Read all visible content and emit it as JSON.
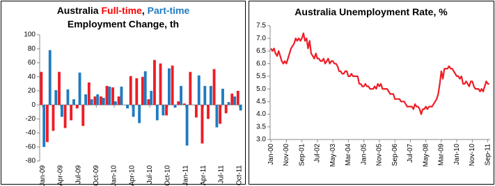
{
  "chart_data": [
    {
      "type": "bar",
      "title_parts": [
        {
          "text": "Australia ",
          "color": "#000000"
        },
        {
          "text": "Full-time",
          "color": "#ff0000"
        },
        {
          "text": ", ",
          "color": "#000000"
        },
        {
          "text": "Part-time",
          "color": "#1f7bc1"
        }
      ],
      "subtitle": "Employment Change, th",
      "categories": [
        "Jan-09",
        null,
        null,
        "Apr-09",
        null,
        null,
        "Jul-09",
        null,
        null,
        "Oct-09",
        null,
        null,
        "Jan-10",
        null,
        null,
        "Apr-10",
        null,
        null,
        "Jul-10",
        null,
        null,
        "Oct-10",
        null,
        null,
        "Jan-11",
        null,
        null,
        "Apr-11",
        null,
        null,
        "Jul-11",
        null,
        null,
        "Oct-11"
      ],
      "series": [
        {
          "name": "Full-time",
          "color": "#ee1c25",
          "values": [
            47,
            -53,
            -37,
            47,
            -33,
            -22,
            -5,
            -30,
            32,
            12,
            12,
            27,
            25,
            12,
            0,
            41,
            38,
            40,
            8,
            64,
            59,
            -15,
            56,
            5,
            2,
            47,
            -18,
            -55,
            -20,
            51,
            -27,
            -12,
            16,
            20
          ]
        },
        {
          "name": "Part-time",
          "color": "#1f7bc1",
          "values": [
            -60,
            78,
            21,
            -17,
            22,
            8,
            46,
            15,
            8,
            15,
            10,
            26,
            5,
            26,
            -5,
            -17,
            -26,
            48,
            20,
            -22,
            -15,
            52,
            -4,
            27,
            -58,
            0,
            42,
            27,
            27,
            -32,
            23,
            4,
            12,
            -8
          ]
        }
      ],
      "ylim": [
        -80,
        100
      ],
      "yticks": [
        -80,
        -60,
        -40,
        -20,
        0,
        20,
        40,
        60,
        80,
        100
      ]
    },
    {
      "type": "line",
      "title_parts": [
        {
          "text": "Australia Unemployment Rate, %",
          "color": "#000000"
        }
      ],
      "categories": [
        "Jan-00",
        null,
        null,
        null,
        null,
        null,
        null,
        null,
        null,
        null,
        "Nov-00",
        null,
        null,
        null,
        null,
        null,
        null,
        null,
        null,
        null,
        "Sep-01",
        null,
        null,
        null,
        null,
        null,
        null,
        null,
        null,
        null,
        "Jul-02",
        null,
        null,
        null,
        null,
        null,
        null,
        null,
        null,
        null,
        "May-03",
        null,
        null,
        null,
        null,
        null,
        null,
        null,
        null,
        null,
        "Mar-04",
        null,
        null,
        null,
        null,
        null,
        null,
        null,
        null,
        null,
        "Jan-05",
        null,
        null,
        null,
        null,
        null,
        null,
        null,
        null,
        null,
        "Nov-05",
        null,
        null,
        null,
        null,
        null,
        null,
        null,
        null,
        null,
        "Sep-06",
        null,
        null,
        null,
        null,
        null,
        null,
        null,
        null,
        null,
        "Jul-07",
        null,
        null,
        null,
        null,
        null,
        null,
        null,
        null,
        null,
        "May-08",
        null,
        null,
        null,
        null,
        null,
        null,
        null,
        null,
        null,
        "Mar-09",
        null,
        null,
        null,
        null,
        null,
        null,
        null,
        null,
        null,
        "Jan-10",
        null,
        null,
        null,
        null,
        null,
        null,
        null,
        null,
        null,
        "Nov-10",
        null,
        null,
        null,
        null,
        null,
        null,
        null,
        null,
        null,
        "Sep-11",
        null
      ],
      "series": [
        {
          "name": "Unemployment Rate",
          "color": "#ee1c25",
          "values": [
            6.6,
            6.5,
            6.6,
            6.4,
            6.3,
            6.5,
            6.3,
            6.1,
            6.0,
            6.1,
            6.0,
            6.2,
            6.4,
            6.6,
            6.7,
            6.8,
            7.0,
            6.9,
            7.0,
            6.9,
            7.0,
            7.2,
            6.9,
            7.0,
            6.6,
            6.9,
            6.4,
            6.3,
            6.2,
            6.4,
            6.2,
            6.2,
            6.1,
            6.1,
            6.2,
            6.0,
            6.1,
            6.2,
            6.0,
            6.1,
            6.1,
            6.0,
            6.0,
            5.9,
            5.7,
            5.7,
            5.6,
            5.6,
            5.7,
            5.7,
            5.5,
            5.5,
            5.6,
            5.5,
            5.5,
            5.5,
            5.5,
            5.2,
            5.2,
            5.1,
            5.1,
            5.2,
            5.1,
            5.1,
            5.0,
            5.0,
            5.0,
            5.1,
            5.0,
            5.2,
            5.1,
            5.2,
            5.0,
            5.0,
            5.0,
            5.0,
            4.9,
            4.8,
            4.8,
            4.8,
            4.6,
            4.6,
            4.6,
            4.6,
            4.5,
            4.5,
            4.5,
            4.4,
            4.3,
            4.3,
            4.3,
            4.3,
            4.2,
            4.4,
            4.3,
            4.3,
            4.2,
            4.0,
            4.2,
            4.2,
            4.3,
            4.2,
            4.3,
            4.3,
            4.3,
            4.4,
            4.5,
            4.6,
            4.8,
            5.2,
            5.7,
            5.4,
            5.8,
            5.8,
            5.8,
            5.9,
            5.8,
            5.8,
            5.7,
            5.6,
            5.5,
            5.5,
            5.4,
            5.5,
            5.2,
            5.2,
            5.3,
            5.2,
            5.1,
            5.3,
            5.3,
            5.1,
            5.0,
            5.0,
            5.0,
            4.9,
            5.0,
            4.9,
            5.1,
            5.3,
            5.2,
            5.2
          ]
        }
      ],
      "ylim": [
        3.0,
        7.5
      ],
      "yticks": [
        {
          "value": 3.0,
          "label": "3.0"
        },
        {
          "value": 3.5,
          "label": "3.5"
        },
        {
          "value": 4.0,
          "label": "4.0"
        },
        {
          "value": 4.5,
          "label": "4.5"
        },
        {
          "value": 5.0,
          "label": "5.0"
        },
        {
          "value": 5.5,
          "label": "5.5"
        },
        {
          "value": 6.0,
          "label": "6.0"
        },
        {
          "value": 6.5,
          "label": "6.5"
        },
        {
          "value": 7.0,
          "label": "7.0"
        },
        {
          "value": 7.5,
          "label": "7.5"
        }
      ]
    }
  ]
}
